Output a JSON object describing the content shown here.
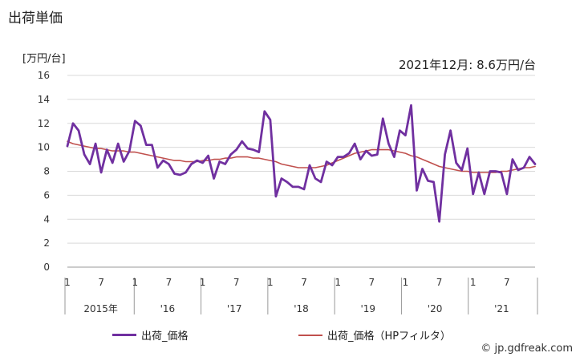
{
  "title": "出荷単価",
  "unit_label": "[万円/台]",
  "latest_note": "2021年12月: 8.6万円/台",
  "credit": "© jp.gdfreak.com",
  "colors": {
    "price": "#7030a0",
    "trend": "#c0504d",
    "grid": "#d9d9d9",
    "axis": "#999999"
  },
  "chart_data": {
    "type": "line",
    "title": "出荷単価",
    "ylabel": "[万円/台]",
    "ylim": [
      0,
      16
    ],
    "yticks": [
      0,
      2,
      4,
      6,
      8,
      10,
      12,
      14,
      16
    ],
    "grid": "horizontal",
    "legend_position": "bottom",
    "x_month_labels": [
      "1",
      "7",
      "1",
      "7",
      "1",
      "7",
      "1",
      "7",
      "1",
      "7",
      "1",
      "7",
      "1",
      "7"
    ],
    "x_month_label_index": [
      0,
      6,
      12,
      18,
      24,
      30,
      36,
      42,
      48,
      54,
      60,
      66,
      72,
      78
    ],
    "x_year_labels": [
      "2015年",
      "'16",
      "'17",
      "'18",
      "'19",
      "'20",
      "'21"
    ],
    "series": [
      {
        "name": "出荷_価格",
        "values": [
          10.1,
          12.0,
          11.4,
          9.4,
          8.6,
          10.3,
          7.9,
          9.8,
          8.7,
          10.3,
          8.8,
          9.7,
          12.2,
          11.8,
          10.2,
          10.2,
          8.3,
          8.9,
          8.6,
          7.8,
          7.7,
          7.9,
          8.6,
          8.9,
          8.7,
          9.3,
          7.4,
          8.8,
          8.6,
          9.4,
          9.8,
          10.5,
          9.9,
          9.8,
          9.6,
          13.0,
          12.3,
          5.9,
          7.4,
          7.1,
          6.7,
          6.7,
          6.5,
          8.5,
          7.4,
          7.1,
          8.8,
          8.5,
          9.2,
          9.2,
          9.5,
          10.3,
          9.0,
          9.7,
          9.3,
          9.4,
          12.4,
          10.3,
          9.2,
          11.4,
          11.0,
          13.5,
          6.4,
          8.2,
          7.2,
          7.1,
          3.8,
          9.4,
          11.4,
          8.7,
          8.1,
          9.9,
          6.1,
          7.9,
          6.1,
          8.0,
          8.0,
          7.9,
          6.1,
          9.0,
          8.1,
          8.3,
          9.2,
          8.6
        ]
      },
      {
        "name": "出荷_価格（HPフィルタ）",
        "values": [
          10.5,
          10.3,
          10.2,
          10.1,
          10.0,
          9.9,
          9.9,
          9.8,
          9.7,
          9.7,
          9.7,
          9.6,
          9.6,
          9.5,
          9.4,
          9.3,
          9.2,
          9.1,
          9.0,
          8.9,
          8.9,
          8.8,
          8.8,
          8.8,
          8.9,
          8.9,
          9.0,
          9.0,
          9.1,
          9.1,
          9.2,
          9.2,
          9.2,
          9.1,
          9.1,
          9.0,
          8.9,
          8.8,
          8.6,
          8.5,
          8.4,
          8.3,
          8.3,
          8.3,
          8.3,
          8.4,
          8.5,
          8.7,
          8.9,
          9.1,
          9.3,
          9.5,
          9.6,
          9.7,
          9.8,
          9.8,
          9.8,
          9.8,
          9.7,
          9.6,
          9.5,
          9.3,
          9.2,
          9.0,
          8.8,
          8.6,
          8.4,
          8.3,
          8.2,
          8.1,
          8.0,
          8.0,
          7.9,
          7.9,
          7.9,
          7.9,
          7.9,
          8.0,
          8.0,
          8.1,
          8.2,
          8.3,
          8.3,
          8.4
        ]
      }
    ]
  }
}
